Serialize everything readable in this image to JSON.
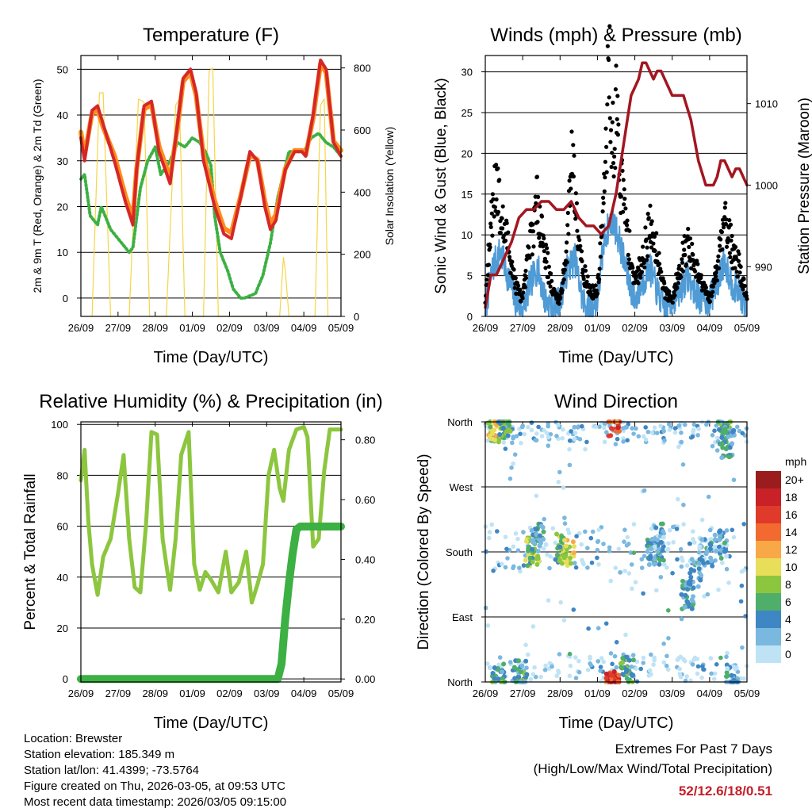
{
  "chart_data": [
    {
      "type": "line",
      "title": "Temperature (F)",
      "xlabel": "Time (Day/UTC)",
      "ylabel": "2m & 9m T (Red, Orange) & 2m Td (Green)",
      "ylabel_right": "Solar Insolation (Yellow)",
      "x_ticks": [
        "26/09",
        "27/09",
        "28/09",
        "01/09",
        "02/09",
        "03/09",
        "04/09",
        "05/09"
      ],
      "xlim": [
        0,
        7
      ],
      "ylim": [
        -4,
        53
      ],
      "y_ticks": [
        0,
        10,
        20,
        30,
        40,
        50
      ],
      "ylim_right": [
        0,
        840
      ],
      "y_ticks_right": [
        0,
        200,
        400,
        600,
        800
      ],
      "series": [
        {
          "name": "2m T",
          "color": "#d62728",
          "x": [
            0,
            0.1,
            0.3,
            0.45,
            0.6,
            0.9,
            1.2,
            1.4,
            1.5,
            1.7,
            1.9,
            2.1,
            2.4,
            2.6,
            2.75,
            2.95,
            3.1,
            3.3,
            3.6,
            3.85,
            4.05,
            4.3,
            4.55,
            4.75,
            4.95,
            5.1,
            5.25,
            5.5,
            5.75,
            5.95,
            6.05,
            6.25,
            6.45,
            6.6,
            6.8,
            7.0
          ],
          "y": [
            35,
            30,
            41,
            42,
            38,
            30,
            21,
            16,
            28,
            42,
            43,
            32,
            25,
            38,
            48,
            50,
            45,
            30,
            20,
            14,
            13,
            22,
            32,
            30,
            20,
            15,
            17,
            28,
            32,
            32,
            31,
            40,
            52,
            50,
            34,
            31
          ]
        },
        {
          "name": "9m T",
          "color": "#ff8c1a",
          "x": [
            0,
            0.1,
            0.3,
            0.45,
            0.6,
            0.9,
            1.2,
            1.4,
            1.5,
            1.7,
            1.9,
            2.1,
            2.4,
            2.6,
            2.75,
            2.95,
            3.1,
            3.3,
            3.6,
            3.85,
            4.05,
            4.3,
            4.55,
            4.75,
            4.95,
            5.1,
            5.25,
            5.5,
            5.75,
            5.95,
            6.05,
            6.25,
            6.45,
            6.6,
            6.8,
            7.0
          ],
          "y": [
            36,
            31,
            40,
            41,
            37,
            31,
            22,
            17,
            28,
            41,
            42,
            33,
            26,
            37,
            47,
            49,
            44,
            31,
            21,
            15,
            14,
            22,
            31,
            30,
            21,
            16,
            18,
            28,
            32,
            32,
            31,
            39,
            51,
            49,
            34,
            32
          ]
        },
        {
          "name": "2m Td",
          "color": "#3cb043",
          "x": [
            0,
            0.1,
            0.25,
            0.45,
            0.55,
            0.8,
            1.1,
            1.3,
            1.4,
            1.6,
            1.8,
            2.0,
            2.15,
            2.4,
            2.6,
            2.8,
            3.0,
            3.2,
            3.35,
            3.5,
            3.6,
            3.75,
            3.95,
            4.1,
            4.3,
            4.4,
            4.7,
            4.9,
            5.1,
            5.3,
            5.6,
            5.8,
            6.0,
            6.2,
            6.4,
            6.6,
            6.8,
            7.0
          ],
          "y": [
            26,
            27,
            18,
            16,
            20,
            15,
            12,
            10,
            11,
            24,
            30,
            33,
            27,
            30,
            34,
            33,
            35,
            34,
            32,
            29,
            18,
            10,
            6,
            2,
            0,
            0,
            1,
            5,
            12,
            22,
            32,
            32,
            32,
            35,
            36,
            34,
            33,
            31
          ]
        },
        {
          "name": "Solar Insolation",
          "color": "#f5d547",
          "axis": "right",
          "x": [
            0.3,
            0.5,
            0.6,
            0.8,
            1.3,
            1.55,
            1.7,
            1.85,
            2.3,
            2.55,
            2.65,
            2.8,
            3.3,
            3.45,
            3.55,
            3.7,
            5.35,
            5.45,
            5.5,
            5.6,
            6.3,
            6.45,
            6.55,
            6.65
          ],
          "y": [
            0,
            720,
            720,
            0,
            0,
            700,
            690,
            0,
            0,
            680,
            700,
            0,
            0,
            790,
            800,
            0,
            0,
            190,
            150,
            0,
            0,
            680,
            700,
            0
          ]
        }
      ]
    },
    {
      "type": "scatter",
      "title": "Winds (mph) & Pressure (mb)",
      "xlabel": "Time (Day/UTC)",
      "ylabel": "Sonic Wind & Gust (Blue, Black)",
      "ylabel_right": "Station Pressure (Maroon)",
      "x_ticks": [
        "26/09",
        "27/09",
        "28/09",
        "01/09",
        "02/09",
        "03/09",
        "04/09",
        "05/09"
      ],
      "xlim": [
        0,
        7
      ],
      "ylim": [
        0,
        32
      ],
      "y_ticks": [
        0,
        5,
        10,
        15,
        20,
        25,
        30
      ],
      "ylim_right": [
        983.9,
        1015.9
      ],
      "y_ticks_right": [
        990,
        1000,
        1010
      ],
      "series": [
        {
          "name": "Sonic Wind",
          "color": "#4f9bd6",
          "x": [
            0,
            0.2,
            0.4,
            0.6,
            0.8,
            1.0,
            1.2,
            1.4,
            1.6,
            1.8,
            2.0,
            2.2,
            2.4,
            2.6,
            2.8,
            3.0,
            3.2,
            3.4,
            3.6,
            3.8,
            4.0,
            4.2,
            4.4,
            4.6,
            4.8,
            5.0,
            5.2,
            5.4,
            5.6,
            5.8,
            6.0,
            6.2,
            6.4,
            6.6,
            6.8,
            7.0
          ],
          "y": [
            1,
            6,
            8,
            5,
            2,
            1,
            4,
            6,
            2,
            1,
            2,
            6,
            7,
            2,
            1,
            2,
            10,
            12,
            9,
            5,
            2,
            4,
            6,
            3,
            1,
            2,
            3,
            5,
            3,
            2,
            2,
            4,
            7,
            4,
            3,
            1
          ]
        },
        {
          "name": "Gust",
          "color": "#000000",
          "x": [
            0,
            0.2,
            0.3,
            0.4,
            0.6,
            0.8,
            1.0,
            1.2,
            1.4,
            1.6,
            1.8,
            2.0,
            2.2,
            2.3,
            2.4,
            2.6,
            2.8,
            3.0,
            3.2,
            3.3,
            3.35,
            3.4,
            3.5,
            3.6,
            3.8,
            4.0,
            4.2,
            4.4,
            4.6,
            4.8,
            5.0,
            5.2,
            5.4,
            5.6,
            5.8,
            6.0,
            6.2,
            6.4,
            6.6,
            6.8,
            7.0
          ],
          "y": [
            2,
            14,
            18,
            12,
            9,
            4,
            2,
            9,
            14,
            8,
            3,
            2,
            9,
            21,
            15,
            6,
            3,
            3,
            16,
            30,
            28,
            20,
            25,
            18,
            10,
            4,
            7,
            11,
            8,
            3,
            2,
            6,
            9,
            6,
            4,
            2,
            6,
            13,
            8,
            6,
            2
          ]
        },
        {
          "name": "Station Pressure",
          "color": "#a31621",
          "axis": "right",
          "x": [
            0,
            0.15,
            0.3,
            0.5,
            0.7,
            0.9,
            1.1,
            1.3,
            1.5,
            1.7,
            1.9,
            2.1,
            2.3,
            2.5,
            2.7,
            2.9,
            3.1,
            3.3,
            3.5,
            3.6,
            3.7,
            3.8,
            3.9,
            4.0,
            4.1,
            4.2,
            4.3,
            4.4,
            4.5,
            4.6,
            4.7,
            4.8,
            4.9,
            5.0,
            5.1,
            5.3,
            5.5,
            5.7,
            5.9,
            6.0,
            6.1,
            6.2,
            6.3,
            6.4,
            6.5,
            6.6,
            6.7,
            6.8,
            6.9,
            7.0
          ],
          "y": [
            985,
            989,
            989,
            991,
            993,
            996,
            997,
            997,
            998,
            998,
            997,
            997,
            998,
            996,
            995,
            995,
            994,
            995,
            999,
            1002,
            1005,
            1008,
            1011,
            1012,
            1013,
            1015,
            1015,
            1014,
            1013,
            1014,
            1014,
            1013,
            1012,
            1011,
            1011,
            1011,
            1008,
            1003,
            1000,
            1000,
            1000,
            1001,
            1003,
            1003,
            1002,
            1001,
            1002,
            1002,
            1001,
            1000
          ]
        }
      ]
    },
    {
      "type": "line",
      "title": "Relative Humidity (%) & Precipitation (in)",
      "xlabel": "Time (Day/UTC)",
      "ylabel": "Percent & Total Rainfall",
      "x_ticks": [
        "26/09",
        "27/09",
        "28/09",
        "01/09",
        "02/09",
        "03/09",
        "04/09",
        "05/09"
      ],
      "xlim": [
        0,
        7
      ],
      "ylim": [
        -1.2,
        101
      ],
      "y_ticks": [
        0,
        20,
        40,
        60,
        80,
        100
      ],
      "ylim_right": [
        -0.01,
        0.86
      ],
      "y_ticks_right": [
        "0.00",
        "0.20",
        "0.40",
        "0.60",
        "0.80"
      ],
      "series": [
        {
          "name": "Relative Humidity",
          "color": "#8cc63f",
          "x": [
            0,
            0.1,
            0.2,
            0.3,
            0.45,
            0.6,
            0.8,
            1.0,
            1.15,
            1.3,
            1.45,
            1.6,
            1.75,
            1.9,
            2.05,
            2.2,
            2.4,
            2.55,
            2.7,
            2.9,
            3.05,
            3.2,
            3.35,
            3.5,
            3.7,
            3.9,
            4.05,
            4.25,
            4.45,
            4.6,
            4.75,
            4.9,
            5.05,
            5.2,
            5.35,
            5.45,
            5.6,
            5.8,
            6.0,
            6.1,
            6.25,
            6.4,
            6.55,
            6.7,
            6.85,
            7.0
          ],
          "y": [
            78,
            90,
            62,
            45,
            33,
            48,
            55,
            73,
            88,
            55,
            36,
            34,
            60,
            97,
            96,
            55,
            35,
            55,
            88,
            97,
            45,
            35,
            42,
            39,
            34,
            50,
            34,
            38,
            50,
            30,
            37,
            45,
            80,
            90,
            75,
            70,
            90,
            98,
            99,
            95,
            52,
            55,
            82,
            98,
            98,
            98
          ]
        },
        {
          "name": "Total Precipitation",
          "color": "#3cb043",
          "axis": "right",
          "x": [
            0,
            1.0,
            2.0,
            3.0,
            4.0,
            5.0,
            5.3,
            5.4,
            5.5,
            5.6,
            5.7,
            5.8,
            5.9,
            6.0,
            6.5,
            7.0
          ],
          "y": [
            0,
            0,
            0,
            0,
            0,
            0,
            0,
            0.05,
            0.2,
            0.32,
            0.42,
            0.5,
            0.51,
            0.51,
            0.51,
            0.51
          ]
        }
      ]
    },
    {
      "type": "scatter",
      "title": "Wind Direction",
      "xlabel": "Time (Day/UTC)",
      "ylabel": "Direction (Colored By Speed)",
      "x_ticks": [
        "26/09",
        "27/09",
        "28/09",
        "01/09",
        "02/09",
        "03/09",
        "04/09",
        "05/09"
      ],
      "y_categories": [
        "North",
        "East",
        "South",
        "West",
        "North"
      ],
      "ylim_deg": [
        0,
        360
      ],
      "colorbar": {
        "title": "mph",
        "labels": [
          "20+",
          "18",
          "16",
          "14",
          "12",
          "10",
          "8",
          "6",
          "4",
          "2",
          "0"
        ],
        "colors": [
          "#9b1c1c",
          "#c82128",
          "#e03a2b",
          "#f26a30",
          "#f9a848",
          "#e8de5a",
          "#8cc63f",
          "#4fae6a",
          "#3f86c4",
          "#7ab8e0",
          "#bfe3f5"
        ]
      },
      "clusters": [
        {
          "x": 0.25,
          "dir": 350,
          "speed": 9
        },
        {
          "x": 0.5,
          "dir": 355,
          "speed": 6
        },
        {
          "x": 0.35,
          "dir": 5,
          "speed": 5
        },
        {
          "x": 0.95,
          "dir": 10,
          "speed": 5
        },
        {
          "x": 1.25,
          "dir": 180,
          "speed": 7
        },
        {
          "x": 1.4,
          "dir": 200,
          "speed": 4
        },
        {
          "x": 2.2,
          "dir": 180,
          "speed": 10
        },
        {
          "x": 2.0,
          "dir": 185,
          "speed": 7
        },
        {
          "x": 3.4,
          "dir": 0,
          "speed": 15
        },
        {
          "x": 3.45,
          "dir": 360,
          "speed": 15
        },
        {
          "x": 3.8,
          "dir": 15,
          "speed": 6
        },
        {
          "x": 4.5,
          "dir": 180,
          "speed": 4
        },
        {
          "x": 4.6,
          "dir": 200,
          "speed": 3
        },
        {
          "x": 5.4,
          "dir": 120,
          "speed": 4
        },
        {
          "x": 5.6,
          "dir": 150,
          "speed": 3
        },
        {
          "x": 5.9,
          "dir": 180,
          "speed": 3
        },
        {
          "x": 6.3,
          "dir": 190,
          "speed": 3
        },
        {
          "x": 6.4,
          "dir": 345,
          "speed": 5
        },
        {
          "x": 6.5,
          "dir": 330,
          "speed": 4
        },
        {
          "x": 6.6,
          "dir": 5,
          "speed": 3
        }
      ]
    }
  ],
  "footer": {
    "location": "Location: Brewster",
    "elevation": "Station elevation: 185.349 m",
    "latlon": "Station lat/lon: 41.4399; -73.5764",
    "created": "Figure created on Thu, 2026-03-05, at 09:53 UTC",
    "recent": "Most recent data timestamp: 2026/03/05 09:15:00"
  },
  "extremes": {
    "title": "Extremes For Past 7 Days",
    "subtitle": "(High/Low/Max Wind/Total Precipitation)",
    "values": "52/12.6/18/0.51",
    "color": "#c41e28"
  }
}
